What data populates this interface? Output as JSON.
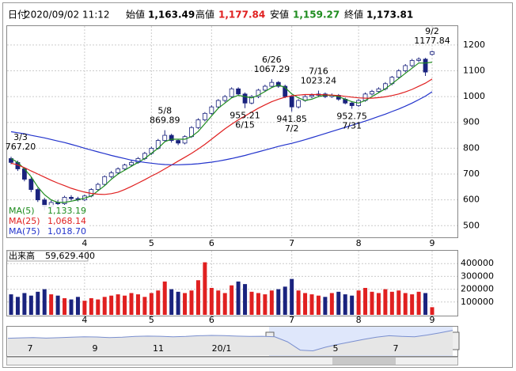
{
  "header": {
    "items": [
      {
        "label": "日付",
        "value": "2020/09/02 11:12"
      },
      {
        "label": "始値",
        "value": "1,163.49"
      },
      {
        "label": "高値",
        "value": "1,177.84"
      },
      {
        "label": "安値",
        "value": "1,159.27"
      },
      {
        "label": "終値",
        "value": "1,173.81"
      }
    ]
  },
  "chart_data": {
    "type": "candlestick",
    "categories": [
      null,
      null,
      null,
      null,
      null,
      null,
      null,
      null,
      null,
      null,
      null,
      "4",
      null,
      null,
      null,
      null,
      null,
      null,
      null,
      null,
      null,
      "5",
      null,
      null,
      null,
      null,
      null,
      null,
      null,
      null,
      "6",
      null,
      null,
      null,
      null,
      null,
      null,
      null,
      null,
      null,
      null,
      null,
      "7",
      null,
      null,
      null,
      null,
      null,
      null,
      null,
      null,
      null,
      "8",
      null,
      null,
      null,
      null,
      null,
      null,
      null,
      null,
      null,
      null,
      "9"
    ],
    "ohlc": [
      [
        760,
        767.2,
        738,
        745
      ],
      [
        745,
        752,
        712,
        720
      ],
      [
        720,
        726,
        672,
        680
      ],
      [
        680,
        688,
        630,
        640
      ],
      [
        640,
        646,
        592,
        600
      ],
      [
        600,
        608,
        560,
        575
      ],
      [
        575,
        598,
        568,
        590
      ],
      [
        590,
        600,
        578,
        585
      ],
      [
        585,
        616,
        580,
        610
      ],
      [
        610,
        618,
        598,
        605
      ],
      [
        605,
        612,
        594,
        600
      ],
      [
        600,
        620,
        596,
        615
      ],
      [
        615,
        645,
        610,
        640
      ],
      [
        640,
        666,
        634,
        660
      ],
      [
        660,
        695,
        655,
        690
      ],
      [
        690,
        712,
        684,
        705
      ],
      [
        705,
        726,
        698,
        720
      ],
      [
        720,
        740,
        714,
        735
      ],
      [
        735,
        752,
        728,
        745
      ],
      [
        745,
        766,
        740,
        760
      ],
      [
        760,
        786,
        754,
        780
      ],
      [
        780,
        806,
        774,
        800
      ],
      [
        800,
        836,
        795,
        830
      ],
      [
        830,
        869.89,
        824,
        850
      ],
      [
        850,
        856,
        822,
        830
      ],
      [
        830,
        836,
        812,
        820
      ],
      [
        820,
        850,
        815,
        845
      ],
      [
        845,
        886,
        840,
        880
      ],
      [
        880,
        916,
        874,
        910
      ],
      [
        910,
        940,
        904,
        935
      ],
      [
        935,
        966,
        930,
        960
      ],
      [
        960,
        990,
        954,
        985
      ],
      [
        985,
        1006,
        978,
        1000
      ],
      [
        1000,
        1036,
        995,
        1030
      ],
      [
        1030,
        1036,
        1004,
        1010
      ],
      [
        1010,
        1016,
        955.21,
        975
      ],
      [
        975,
        1006,
        970,
        1000
      ],
      [
        1000,
        1030,
        994,
        1025
      ],
      [
        1025,
        1046,
        1018,
        1040
      ],
      [
        1040,
        1067.29,
        1034,
        1055
      ],
      [
        1055,
        1060,
        1034,
        1040
      ],
      [
        1040,
        1046,
        994,
        1000
      ],
      [
        1000,
        1006,
        941.85,
        960
      ],
      [
        960,
        990,
        954,
        985
      ],
      [
        985,
        1006,
        980,
        1000
      ],
      [
        1000,
        1012,
        994,
        1005
      ],
      [
        1005,
        1023.24,
        998,
        1010
      ],
      [
        1010,
        1016,
        994,
        1000
      ],
      [
        1000,
        1012,
        995,
        1005
      ],
      [
        1005,
        1010,
        984,
        990
      ],
      [
        990,
        996,
        970,
        975
      ],
      [
        975,
        980,
        952.75,
        965
      ],
      [
        965,
        990,
        960,
        985
      ],
      [
        985,
        1016,
        980,
        1010
      ],
      [
        1010,
        1026,
        1004,
        1020
      ],
      [
        1020,
        1036,
        1014,
        1030
      ],
      [
        1030,
        1056,
        1024,
        1050
      ],
      [
        1050,
        1080,
        1044,
        1075
      ],
      [
        1075,
        1106,
        1070,
        1100
      ],
      [
        1100,
        1126,
        1094,
        1120
      ],
      [
        1120,
        1146,
        1114,
        1140
      ],
      [
        1140,
        1152,
        1134,
        1145
      ],
      [
        1145,
        1150,
        1080,
        1095
      ],
      [
        1163.49,
        1177.84,
        1159.27,
        1173.81
      ]
    ],
    "up_color": "#ffffff",
    "down_color": "#1a237e",
    "edge_color": "#1a237e",
    "ylim": [
      455,
      1273
    ],
    "yticks": [
      500,
      600,
      700,
      800,
      900,
      1000,
      1100,
      1200
    ],
    "grid": true,
    "series": [
      {
        "name": "MA(5)",
        "color": "#1e8c1e",
        "last_label": "1,133.19",
        "values": [
          760,
          745,
          720,
          690,
          650,
          620,
          600,
          590,
          590,
          595,
          600,
          607,
          615,
          635,
          655,
          680,
          700,
          715,
          730,
          745,
          760,
          780,
          800,
          825,
          835,
          835,
          835,
          845,
          865,
          895,
          925,
          955,
          975,
          995,
          1005,
          1000,
          995,
          1005,
          1020,
          1035,
          1045,
          1035,
          1010,
          995,
          985,
          990,
          1000,
          1005,
          1005,
          1000,
          990,
          980,
          975,
          985,
          1000,
          1015,
          1030,
          1050,
          1070,
          1090,
          1110,
          1130,
          1130,
          1133.19
        ]
      },
      {
        "name": "MA(25)",
        "color": "#e02020",
        "last_label": "1,068.14",
        "values": [
          742,
          735,
          725,
          712,
          700,
          688,
          676,
          665,
          655,
          645,
          637,
          630,
          625,
          622,
          621,
          624,
          630,
          640,
          652,
          665,
          678,
          692,
          705,
          720,
          735,
          750,
          765,
          780,
          797,
          815,
          835,
          855,
          875,
          893,
          910,
          925,
          940,
          955,
          968,
          980,
          990,
          998,
          1003,
          1006,
          1008,
          1008,
          1008,
          1007,
          1006,
          1004,
          1001,
          998,
          995,
          994,
          994,
          996,
          999,
          1004,
          1010,
          1018,
          1028,
          1040,
          1052,
          1068.14
        ]
      },
      {
        "name": "MA(75)",
        "color": "#2233cc",
        "last_label": "1,018.70",
        "values": [
          864,
          860,
          856,
          850,
          845,
          840,
          834,
          828,
          822,
          815,
          808,
          800,
          793,
          786,
          779,
          772,
          766,
          760,
          754,
          749,
          745,
          742,
          739,
          737,
          736,
          736,
          737,
          738,
          740,
          743,
          746,
          750,
          755,
          760,
          766,
          772,
          779,
          786,
          793,
          800,
          807,
          813,
          819,
          826,
          833,
          841,
          849,
          857,
          865,
          873,
          881,
          889,
          897,
          905,
          914,
          923,
          932,
          942,
          952,
          963,
          975,
          988,
          1002,
          1018.7
        ]
      }
    ],
    "annotations": [
      {
        "date": "3/3",
        "value": 767.2,
        "label": "767.20"
      },
      {
        "date": "5/8",
        "value": 869.89
      },
      {
        "date": "6/15",
        "value": 955.21
      },
      {
        "date": "6/26",
        "value": 1067.29
      },
      {
        "date": "7/2",
        "value": 941.85
      },
      {
        "date": "7/16",
        "value": 1023.24
      },
      {
        "date": "7/31",
        "value": 952.75
      },
      {
        "date": "9/2",
        "value": 1177.84
      }
    ],
    "volume": {
      "label": "出来高",
      "value_label": "59,629.400",
      "values": [
        160000,
        140000,
        170000,
        150000,
        180000,
        200000,
        160000,
        150000,
        130000,
        120000,
        140000,
        110000,
        130000,
        120000,
        140000,
        150000,
        160000,
        150000,
        170000,
        160000,
        140000,
        170000,
        190000,
        260000,
        200000,
        180000,
        170000,
        190000,
        270000,
        410000,
        210000,
        190000,
        170000,
        230000,
        260000,
        240000,
        180000,
        170000,
        160000,
        190000,
        200000,
        220000,
        280000,
        190000,
        170000,
        160000,
        150000,
        140000,
        170000,
        180000,
        160000,
        150000,
        190000,
        210000,
        180000,
        170000,
        200000,
        180000,
        190000,
        170000,
        160000,
        180000,
        170000,
        59629.4
      ],
      "up_color": "#e02020",
      "down_color": "#1a237e",
      "ylim": [
        0,
        500000
      ],
      "yticks": [
        100000,
        200000,
        300000,
        400000
      ]
    },
    "navigator": {
      "labels": [
        "7",
        "9",
        "11",
        "20/1",
        "5",
        "7"
      ],
      "values": [
        950,
        960,
        970,
        955,
        965,
        980,
        990,
        985,
        970,
        980,
        1000,
        1010,
        1005,
        990,
        1000,
        1020,
        1030,
        1025,
        1010,
        1000,
        1005,
        990,
        850,
        620,
        600,
        700,
        780,
        850,
        920,
        980,
        1020,
        1000,
        990,
        1040,
        1100,
        1170
      ],
      "ylim": [
        500,
        1250
      ]
    }
  }
}
